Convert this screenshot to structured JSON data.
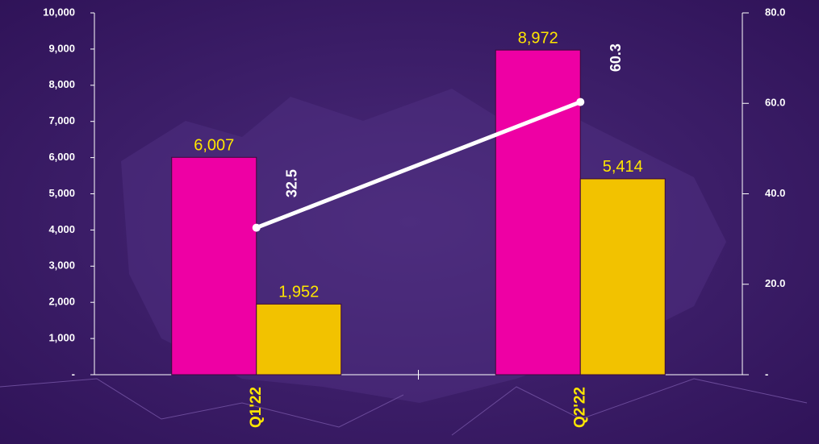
{
  "chart_data": {
    "type": "bar",
    "categories": [
      "Q1'22",
      "Q2'22"
    ],
    "series": [
      {
        "color": "#ee00a4",
        "values": [
          6007,
          8972
        ],
        "value_labels": [
          "6,007",
          "8,972"
        ]
      },
      {
        "color": "#f2c200",
        "values": [
          1952,
          5414
        ],
        "value_labels": [
          "1,952",
          "5,414"
        ]
      },
      {
        "type": "line",
        "axis": "y2",
        "color": "#ffffff",
        "values": [
          32.5,
          60.3
        ]
      }
    ],
    "ylim": [
      0,
      10000
    ],
    "yticks": [
      {
        "value": 0,
        "label": "-"
      },
      {
        "value": 1000,
        "label": "1,000"
      },
      {
        "value": 2000,
        "label": "2,000"
      },
      {
        "value": 3000,
        "label": "3,000"
      },
      {
        "value": 4000,
        "label": "4,000"
      },
      {
        "value": 5000,
        "label": "5,000"
      },
      {
        "value": 6000,
        "label": "6,000"
      },
      {
        "value": 7000,
        "label": "7,000"
      },
      {
        "value": 8000,
        "label": "8,000"
      },
      {
        "value": 9000,
        "label": "9,000"
      },
      {
        "value": 10000,
        "label": "10,000"
      }
    ],
    "y2lim": [
      0,
      80
    ],
    "y2ticks": [
      {
        "value": 0,
        "label": "-"
      },
      {
        "value": 20,
        "label": "20.0"
      },
      {
        "value": 40,
        "label": "40.0"
      },
      {
        "value": 60,
        "label": "60.0"
      },
      {
        "value": 80,
        "label": "80.0"
      }
    ]
  }
}
